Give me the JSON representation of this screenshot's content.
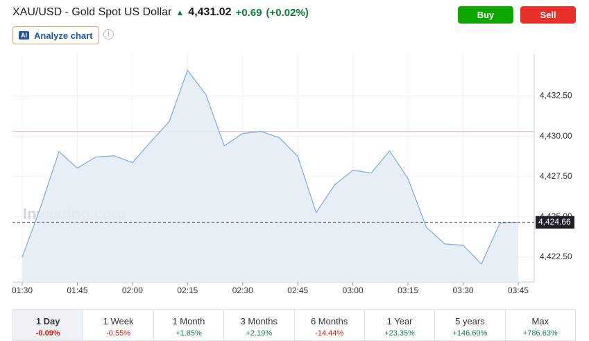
{
  "header": {
    "symbol": "XAU/USD - Gold Spot US Dollar",
    "price": "4,431.02",
    "change": "+0.69",
    "change_pct": "(+0.02%)"
  },
  "buttons": {
    "buy": "Buy",
    "sell": "Sell",
    "analyze": "Analyze chart",
    "ai_badge": "AI"
  },
  "tabs": [
    {
      "name": "1 Day",
      "change": "-0.09%"
    },
    {
      "name": "1 Week",
      "change": "-0.55%"
    },
    {
      "name": "1 Month",
      "change": "+1.85%"
    },
    {
      "name": "3 Months",
      "change": "+2.19%"
    },
    {
      "name": "6 Months",
      "change": "-14.44%"
    },
    {
      "name": "1 Year",
      "change": "+23.35%"
    },
    {
      "name": "5 years",
      "change": "+146.60%"
    },
    {
      "name": "Max",
      "change": "+786.63%"
    }
  ],
  "chart_data": {
    "type": "area",
    "watermark": "Investing.com",
    "categories": [
      "01:30",
      null,
      null,
      "01:45",
      null,
      null,
      "02:00",
      null,
      null,
      "02:15",
      null,
      null,
      "02:30",
      null,
      null,
      "02:45",
      null,
      null,
      "03:00",
      null,
      null,
      "03:15",
      null,
      null,
      "03:30",
      null,
      null,
      "03:45"
    ],
    "series": [
      {
        "name": "XAU/USD",
        "color": "#7fa9d4",
        "values": [
          4422.5,
          4425.6,
          4429.05,
          4428.02,
          4428.71,
          4428.79,
          4428.36,
          4429.66,
          4430.91,
          4434.09,
          4432.59,
          4429.4,
          4430.17,
          4430.3,
          4429.91,
          4428.75,
          4425.26,
          4426.98,
          4427.89,
          4427.72,
          4429.09,
          4427.37,
          4424.35,
          4423.32,
          4423.23,
          4422.07,
          4424.61,
          4424.66
        ]
      }
    ],
    "ylim": [
      4420.95,
      4435.1
    ],
    "yticks": [
      {
        "value": 4422.5,
        "label": "4,422.50"
      },
      {
        "value": 4425,
        "label": "4,425.00"
      },
      {
        "value": 4427.5,
        "label": "4,427.50"
      },
      {
        "value": 4430,
        "label": "4,430.00"
      },
      {
        "value": 4432.5,
        "label": "4,432.50"
      }
    ],
    "last_price": {
      "value": 4424.66,
      "label": "4,424.66"
    },
    "reference_line": 4430.3,
    "grid": true
  }
}
